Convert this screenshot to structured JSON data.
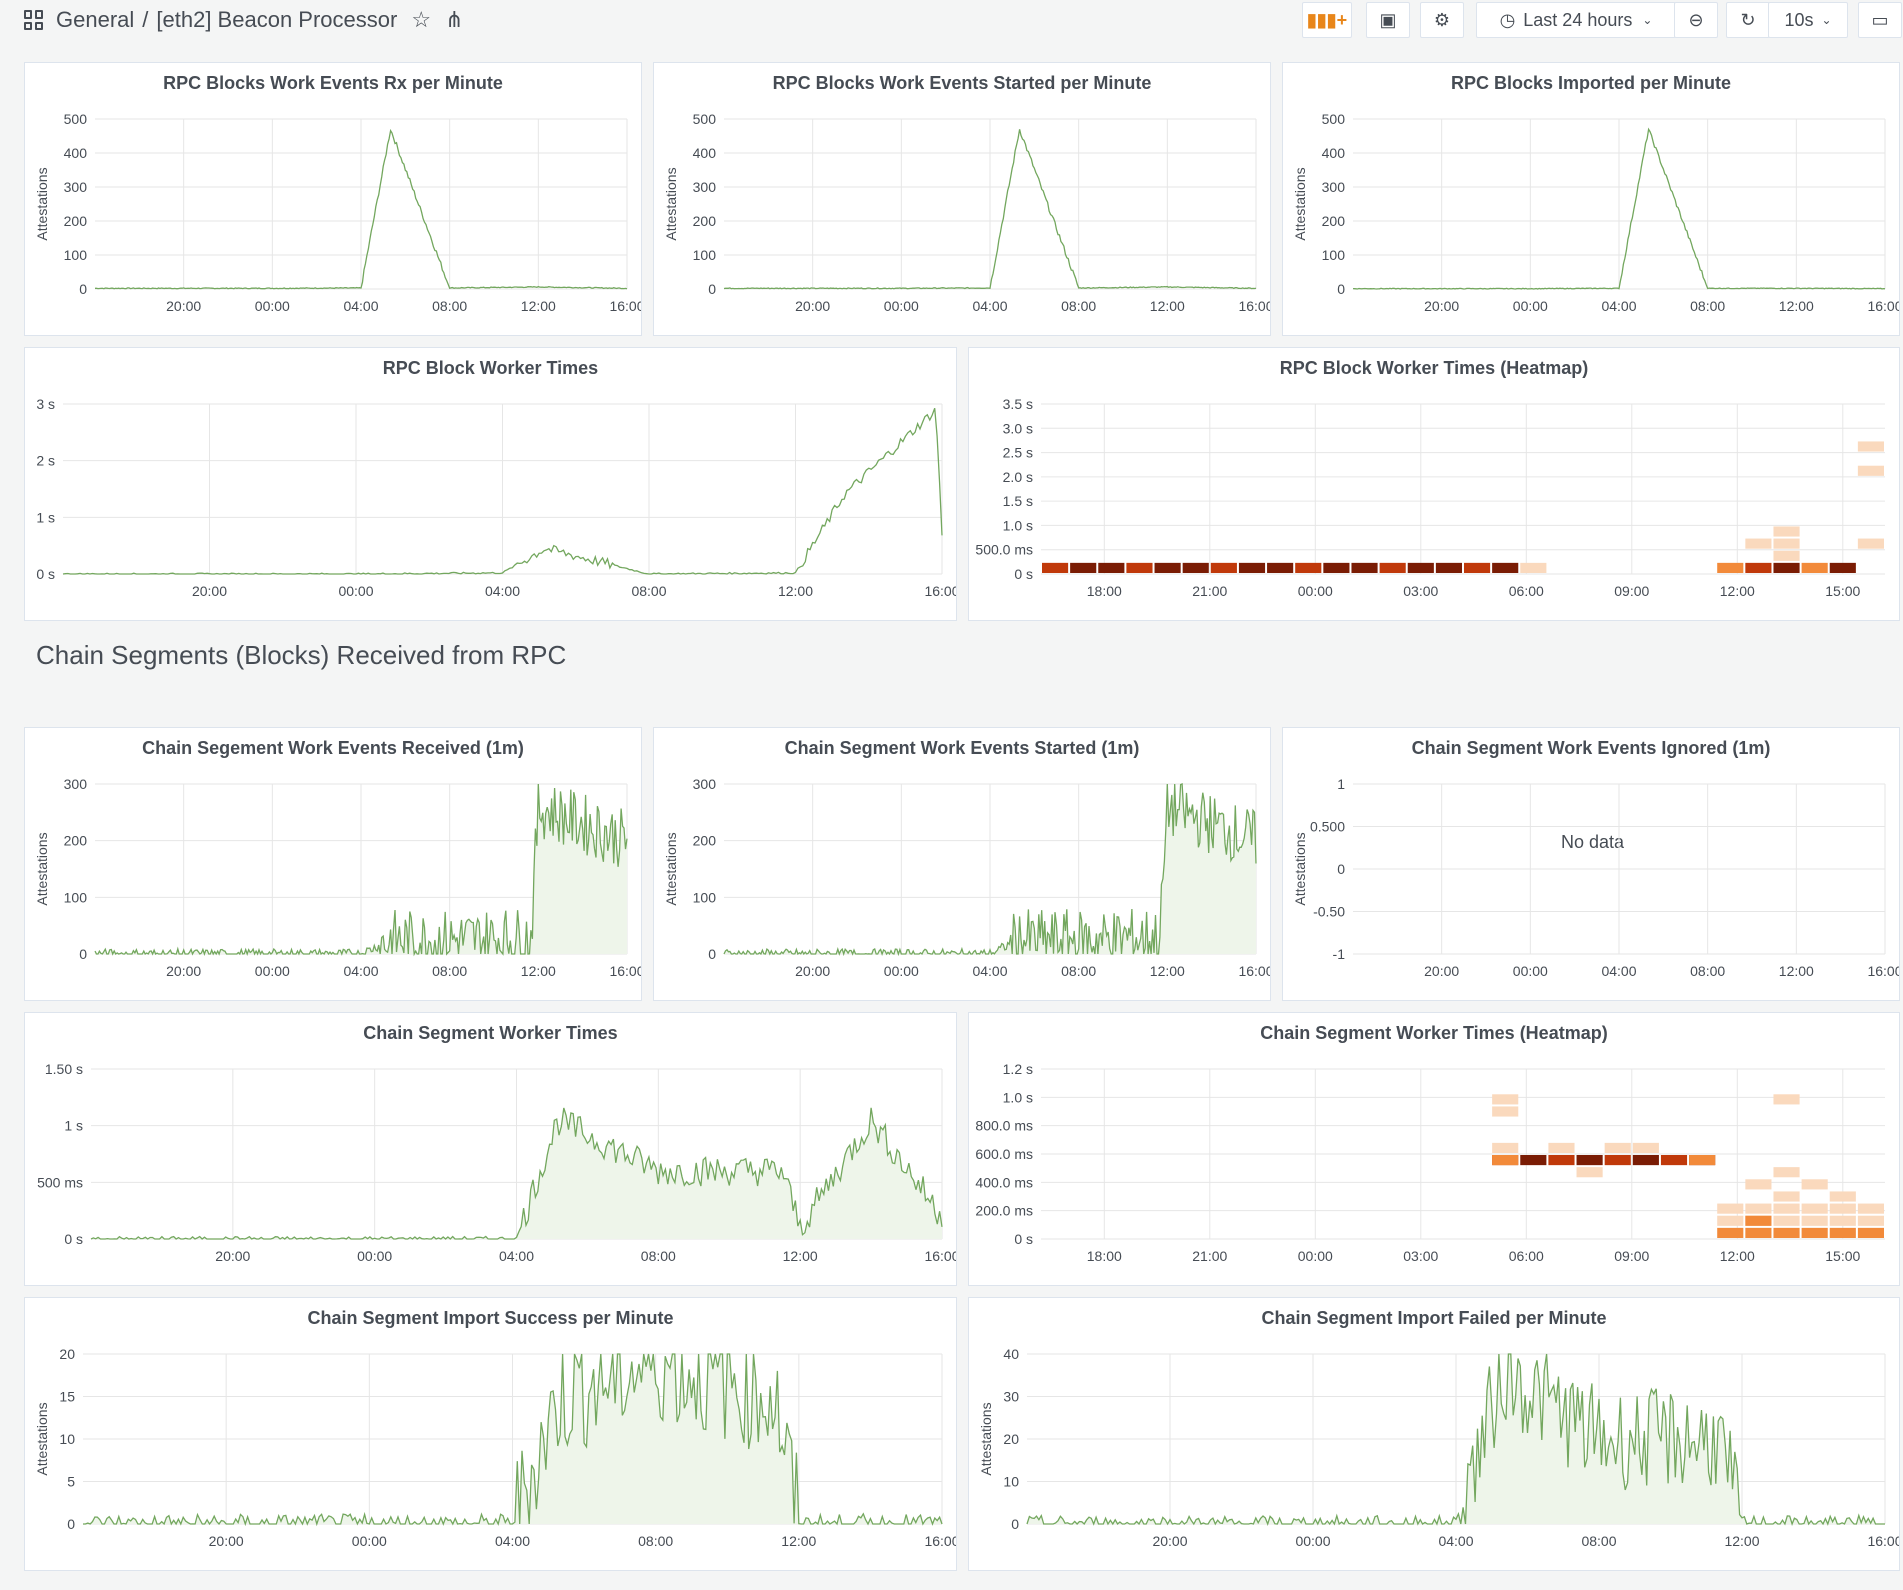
{
  "header": {
    "folder": "General",
    "separator": "/",
    "dashboard_title": "[eth2] Beacon Processor",
    "time_range": "Last 24 hours",
    "refresh": "10s",
    "icons": [
      "dashboard-grid-icon",
      "star-icon",
      "share-icon",
      "add-panel-icon",
      "save-icon",
      "settings-icon",
      "clock-icon",
      "zoom-out-icon",
      "refresh-icon",
      "tv-mode-icon"
    ]
  },
  "row_title": "Chain Segments (Blocks) Received from RPC",
  "colors": {
    "series": "#73a75e",
    "series_fill": "#eef5ea",
    "grid": "#e6e6e6",
    "heat_dark": "#7a1c04",
    "heat_mid": "#c0390a",
    "heat_orange": "#f28a3a",
    "heat_light": "#fad9bd"
  },
  "panels": {
    "rpc_rx": {
      "title": "RPC Blocks Work Events Rx per Minute",
      "ylabel": "Attestations",
      "yticks": [
        "500",
        "400",
        "300",
        "200",
        "100",
        "0"
      ],
      "xticks": [
        "20:00",
        "00:00",
        "04:00",
        "08:00",
        "12:00",
        "16:00"
      ]
    },
    "rpc_started": {
      "title": "RPC Blocks Work Events Started per Minute",
      "ylabel": "Attestations",
      "yticks": [
        "500",
        "400",
        "300",
        "200",
        "100",
        "0"
      ],
      "xticks": [
        "20:00",
        "00:00",
        "04:00",
        "08:00",
        "12:00",
        "16:00"
      ]
    },
    "rpc_imported": {
      "title": "RPC Blocks Imported per Minute",
      "ylabel": "Attestations",
      "yticks": [
        "500",
        "400",
        "300",
        "200",
        "100",
        "0"
      ],
      "xticks": [
        "20:00",
        "00:00",
        "04:00",
        "08:00",
        "12:00",
        "16:00"
      ]
    },
    "rpc_worker_times": {
      "title": "RPC Block Worker Times",
      "ylabel": "",
      "yticks": [
        "3 s",
        "2 s",
        "1 s",
        "0 s"
      ],
      "xticks": [
        "20:00",
        "00:00",
        "04:00",
        "08:00",
        "12:00",
        "16:00"
      ]
    },
    "rpc_heatmap": {
      "title": "RPC Block Worker Times (Heatmap)",
      "yticks": [
        "3.5 s",
        "3.0 s",
        "2.5 s",
        "2.0 s",
        "1.5 s",
        "1.0 s",
        "500.0 ms",
        "0 s"
      ],
      "xticks": [
        "18:00",
        "21:00",
        "00:00",
        "03:00",
        "06:00",
        "09:00",
        "12:00",
        "15:00"
      ]
    },
    "cs_received": {
      "title": "Chain Segement Work Events Received (1m)",
      "ylabel": "Attestations",
      "yticks": [
        "300",
        "200",
        "100",
        "0"
      ],
      "xticks": [
        "20:00",
        "00:00",
        "04:00",
        "08:00",
        "12:00",
        "16:00"
      ]
    },
    "cs_started": {
      "title": "Chain Segment Work Events Started (1m)",
      "ylabel": "Attestations",
      "yticks": [
        "300",
        "200",
        "100",
        "0"
      ],
      "xticks": [
        "20:00",
        "00:00",
        "04:00",
        "08:00",
        "12:00",
        "16:00"
      ]
    },
    "cs_ignored": {
      "title": "Chain Segment Work Events Ignored (1m)",
      "ylabel": "Attestations",
      "yticks": [
        "1",
        "0.500",
        "0",
        "-0.50",
        "-1"
      ],
      "xticks": [
        "20:00",
        "00:00",
        "04:00",
        "08:00",
        "12:00",
        "16:00"
      ],
      "no_data": "No data"
    },
    "cs_worker_times": {
      "title": "Chain Segment Worker Times",
      "ylabel": "",
      "yticks": [
        "1.50 s",
        "1 s",
        "500 ms",
        "0 s"
      ],
      "xticks": [
        "20:00",
        "00:00",
        "04:00",
        "08:00",
        "12:00",
        "16:00"
      ]
    },
    "cs_heatmap": {
      "title": "Chain Segment Worker Times (Heatmap)",
      "yticks": [
        "1.2 s",
        "1.0 s",
        "800.0 ms",
        "600.0 ms",
        "400.0 ms",
        "200.0 ms",
        "0 s"
      ],
      "xticks": [
        "18:00",
        "21:00",
        "00:00",
        "03:00",
        "06:00",
        "09:00",
        "12:00",
        "15:00"
      ]
    },
    "cs_import_success": {
      "title": "Chain Segment Import Success per Minute",
      "ylabel": "Attestations",
      "yticks": [
        "20",
        "15",
        "10",
        "5",
        "0"
      ],
      "xticks": [
        "20:00",
        "00:00",
        "04:00",
        "08:00",
        "12:00",
        "16:00"
      ]
    },
    "cs_import_failed": {
      "title": "Chain Segment Import Failed per Minute",
      "ylabel": "Attestations",
      "yticks": [
        "40",
        "30",
        "20",
        "10",
        "0"
      ],
      "xticks": [
        "20:00",
        "00:00",
        "04:00",
        "08:00",
        "12:00",
        "16:00"
      ]
    }
  },
  "chart_data": [
    {
      "id": "rpc_rx",
      "type": "line",
      "ylim": [
        0,
        500
      ],
      "x": [
        "20:00",
        "00:00",
        "04:00",
        "05:20",
        "08:00",
        "12:00",
        "16:00"
      ],
      "y": [
        2,
        2,
        3,
        470,
        3,
        6,
        2
      ]
    },
    {
      "id": "rpc_started",
      "type": "line",
      "ylim": [
        0,
        500
      ],
      "x": [
        "20:00",
        "00:00",
        "04:00",
        "05:20",
        "08:00",
        "12:00",
        "16:00"
      ],
      "y": [
        2,
        2,
        3,
        470,
        3,
        6,
        2
      ]
    },
    {
      "id": "rpc_imported",
      "type": "line",
      "ylim": [
        0,
        500
      ],
      "x": [
        "20:00",
        "00:00",
        "04:00",
        "05:20",
        "08:00",
        "12:00",
        "16:00"
      ],
      "y": [
        1,
        1,
        2,
        470,
        2,
        2,
        1
      ]
    },
    {
      "id": "rpc_worker_times",
      "type": "line",
      "ylim": [
        0,
        3
      ],
      "x": [
        "20:00",
        "00:00",
        "04:00",
        "05:10",
        "08:00",
        "12:00",
        "13:20",
        "15:50",
        "16:00"
      ],
      "y": [
        0,
        0,
        0.02,
        0.45,
        0,
        0.02,
        1.4,
        2.9,
        0.7
      ]
    },
    {
      "id": "rpc_heatmap",
      "type": "heatmap"
    },
    {
      "id": "cs_received",
      "type": "line",
      "ylim": [
        0,
        300
      ],
      "x": [
        "20:00",
        "00:00",
        "04:00",
        "05:20",
        "08:00",
        "11:40",
        "12:00",
        "16:00"
      ],
      "y": [
        0,
        0,
        0,
        25,
        25,
        30,
        260,
        200
      ]
    },
    {
      "id": "cs_started",
      "type": "line",
      "ylim": [
        0,
        300
      ],
      "x": [
        "20:00",
        "00:00",
        "04:00",
        "05:20",
        "08:00",
        "11:40",
        "12:00",
        "16:00"
      ],
      "y": [
        0,
        0,
        0,
        25,
        25,
        30,
        260,
        200
      ]
    },
    {
      "id": "cs_ignored",
      "type": "line",
      "ylim": [
        -1,
        1
      ],
      "series": []
    },
    {
      "id": "cs_worker_times",
      "type": "line",
      "ylim": [
        0,
        1.5
      ],
      "x": [
        "20:00",
        "00:00",
        "04:00",
        "05:10",
        "08:00",
        "11:30",
        "12:00",
        "14:00",
        "16:00"
      ],
      "y": [
        0,
        0,
        0,
        1.05,
        0.6,
        0.6,
        0.1,
        1.05,
        0.2
      ]
    },
    {
      "id": "cs_heatmap",
      "type": "heatmap"
    },
    {
      "id": "cs_import_success",
      "type": "line",
      "ylim": [
        0,
        20
      ],
      "x": [
        "20:00",
        "00:00",
        "04:00",
        "05:20",
        "08:00",
        "11:20",
        "12:00",
        "16:00"
      ],
      "y": [
        0,
        0,
        0,
        15,
        19,
        15,
        0,
        0
      ]
    },
    {
      "id": "cs_import_failed",
      "type": "line",
      "ylim": [
        0,
        40
      ],
      "x": [
        "20:00",
        "00:00",
        "04:00",
        "05:20",
        "08:00",
        "11:20",
        "12:00",
        "16:00"
      ],
      "y": [
        0,
        0,
        0,
        36,
        20,
        20,
        0,
        0
      ]
    }
  ]
}
